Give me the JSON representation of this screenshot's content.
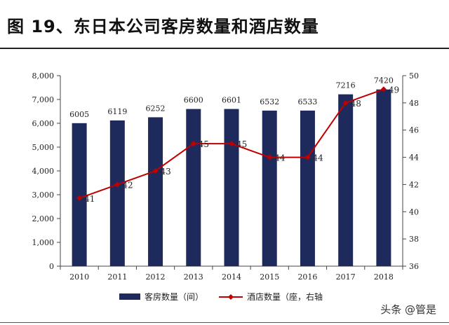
{
  "figure": {
    "title": "图 19、东日本公司客房数量和酒店数量",
    "watermark": "头条 @管是"
  },
  "colors": {
    "bar": "#1f2a5c",
    "line": "#c00000"
  },
  "chart_data": {
    "type": "bar",
    "categories": [
      "2010",
      "2011",
      "2012",
      "2013",
      "2014",
      "2015",
      "2016",
      "2017",
      "2018"
    ],
    "series": [
      {
        "name": "客房数量（间）",
        "type": "bar",
        "axis": "left",
        "values": [
          6005,
          6119,
          6252,
          6600,
          6601,
          6532,
          6533,
          7216,
          7420
        ]
      },
      {
        "name": "酒店数量（座，右轴",
        "type": "line",
        "axis": "right",
        "values": [
          41,
          42,
          43,
          45,
          45,
          44,
          44,
          48,
          49
        ]
      }
    ],
    "left_axis": {
      "ylim": [
        0,
        8000
      ],
      "ticks": [
        0,
        1000,
        2000,
        3000,
        4000,
        5000,
        6000,
        7000,
        8000
      ],
      "tick_labels": [
        "0",
        "1,000",
        "2,000",
        "3,000",
        "4,000",
        "5,000",
        "6,000",
        "7,000",
        "8,000"
      ]
    },
    "right_axis": {
      "ylim": [
        36,
        50
      ],
      "ticks": [
        36,
        38,
        40,
        42,
        44,
        46,
        48,
        50
      ],
      "tick_labels": [
        "36",
        "38",
        "40",
        "42",
        "44",
        "46",
        "48",
        "50"
      ]
    },
    "grid": false,
    "legend": "bottom"
  }
}
